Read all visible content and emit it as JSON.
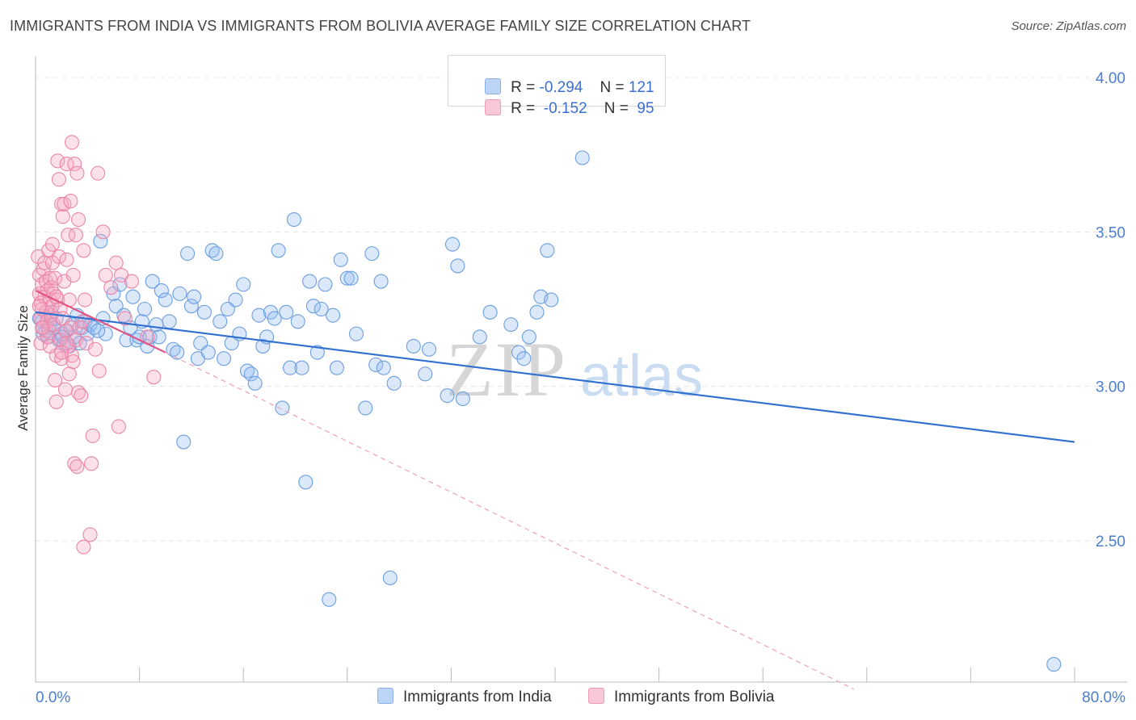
{
  "header": {
    "title": "IMMIGRANTS FROM INDIA VS IMMIGRANTS FROM BOLIVIA AVERAGE FAMILY SIZE CORRELATION CHART",
    "source": "Source: ZipAtlas.com"
  },
  "watermark": {
    "part1": "ZIP",
    "part2": "atlas"
  },
  "legend": {
    "rows": [
      {
        "r_label": "R = ",
        "r_value": "-0.294",
        "n_label": "N = ",
        "n_value": "121",
        "color": "#a9c8f0"
      },
      {
        "r_label": "R = ",
        "r_value": " -0.152",
        "n_label": "N = ",
        "n_value": " 95",
        "color": "#f5b8cc"
      }
    ]
  },
  "bottom_legend": {
    "india_label": "Immigrants from India",
    "bolivia_label": "Immigrants from Bolivia"
  },
  "colors": {
    "india_fill": "rgba(150,190,240,0.35)",
    "india_stroke": "#6c9fe0",
    "india_line": "#2f6fd0",
    "bolivia_fill": "rgba(245,170,195,0.35)",
    "bolivia_stroke": "#ea86a8",
    "bolivia_line": "#e05585",
    "grid": "#e4e4e4",
    "tick_text": "#4a7fcf"
  },
  "chart_data": {
    "type": "scatter",
    "title": "IMMIGRANTS FROM INDIA VS IMMIGRANTS FROM BOLIVIA AVERAGE FAMILY SIZE CORRELATION CHART",
    "xlabel": "",
    "ylabel": "Average Family Size",
    "xlim": [
      0,
      80
    ],
    "ylim": [
      2.0,
      4.1
    ],
    "x_tick_labels": [
      "0.0%",
      "80.0%"
    ],
    "y_ticks": [
      2.5,
      3.0,
      3.5,
      4.0
    ],
    "y_tick_labels": [
      "2.50",
      "3.00",
      "3.50",
      "4.00"
    ],
    "grid": true,
    "legend_position": "top-center",
    "series": [
      {
        "name": "Immigrants from India",
        "R": -0.294,
        "N": 121,
        "trend": {
          "x0": 0.0,
          "y0": 3.24,
          "x1": 80.0,
          "y1": 2.82
        },
        "points": [
          [
            0.5,
            3.21
          ],
          [
            0.8,
            3.18
          ],
          [
            1.0,
            3.16
          ],
          [
            1.2,
            3.24
          ],
          [
            1.4,
            3.19
          ],
          [
            1.6,
            3.22
          ],
          [
            1.8,
            3.15
          ],
          [
            2.0,
            3.17
          ],
          [
            2.2,
            3.14
          ],
          [
            2.4,
            3.18
          ],
          [
            2.6,
            3.13
          ],
          [
            2.8,
            3.2
          ],
          [
            3.0,
            3.16
          ],
          [
            3.2,
            3.23
          ],
          [
            3.4,
            3.14
          ],
          [
            3.6,
            3.19
          ],
          [
            3.8,
            3.21
          ],
          [
            4.0,
            3.17
          ],
          [
            4.2,
            3.2
          ],
          [
            4.5,
            3.19
          ],
          [
            5.0,
            3.47
          ],
          [
            5.2,
            3.22
          ],
          [
            5.4,
            3.17
          ],
          [
            6.0,
            3.3
          ],
          [
            6.2,
            3.26
          ],
          [
            6.5,
            3.33
          ],
          [
            6.8,
            3.23
          ],
          [
            7.0,
            3.15
          ],
          [
            7.3,
            3.19
          ],
          [
            7.5,
            3.29
          ],
          [
            7.8,
            3.15
          ],
          [
            8.0,
            3.16
          ],
          [
            8.2,
            3.21
          ],
          [
            8.4,
            3.25
          ],
          [
            8.6,
            3.13
          ],
          [
            8.8,
            3.16
          ],
          [
            9.0,
            3.34
          ],
          [
            9.3,
            3.2
          ],
          [
            9.5,
            3.16
          ],
          [
            9.7,
            3.31
          ],
          [
            10.0,
            3.28
          ],
          [
            10.3,
            3.21
          ],
          [
            10.6,
            3.12
          ],
          [
            10.9,
            3.11
          ],
          [
            11.1,
            3.3
          ],
          [
            11.4,
            2.82
          ],
          [
            11.7,
            3.43
          ],
          [
            12.0,
            3.26
          ],
          [
            12.2,
            3.29
          ],
          [
            12.5,
            3.09
          ],
          [
            12.7,
            3.14
          ],
          [
            13.0,
            3.24
          ],
          [
            13.3,
            3.11
          ],
          [
            13.6,
            3.44
          ],
          [
            13.9,
            3.43
          ],
          [
            14.2,
            3.21
          ],
          [
            14.5,
            3.09
          ],
          [
            14.8,
            3.25
          ],
          [
            15.1,
            3.14
          ],
          [
            15.4,
            3.28
          ],
          [
            15.7,
            3.17
          ],
          [
            16.0,
            3.33
          ],
          [
            16.3,
            3.05
          ],
          [
            16.6,
            3.04
          ],
          [
            16.9,
            3.01
          ],
          [
            17.2,
            3.23
          ],
          [
            17.5,
            3.13
          ],
          [
            17.8,
            3.16
          ],
          [
            18.1,
            3.24
          ],
          [
            18.4,
            3.22
          ],
          [
            18.7,
            3.44
          ],
          [
            19.0,
            2.93
          ],
          [
            19.3,
            3.24
          ],
          [
            19.6,
            3.06
          ],
          [
            19.9,
            3.54
          ],
          [
            20.2,
            3.21
          ],
          [
            20.5,
            3.06
          ],
          [
            20.8,
            2.69
          ],
          [
            21.1,
            3.34
          ],
          [
            21.4,
            3.26
          ],
          [
            21.7,
            3.11
          ],
          [
            22.0,
            3.25
          ],
          [
            22.3,
            3.33
          ],
          [
            22.6,
            2.31
          ],
          [
            22.9,
            3.23
          ],
          [
            23.2,
            3.06
          ],
          [
            23.5,
            3.41
          ],
          [
            24.0,
            3.35
          ],
          [
            24.3,
            3.35
          ],
          [
            24.7,
            3.17
          ],
          [
            25.4,
            2.93
          ],
          [
            25.9,
            3.43
          ],
          [
            26.2,
            3.07
          ],
          [
            26.6,
            3.34
          ],
          [
            26.8,
            3.06
          ],
          [
            27.3,
            2.38
          ],
          [
            27.6,
            3.01
          ],
          [
            29.1,
            3.13
          ],
          [
            30.0,
            3.04
          ],
          [
            30.3,
            3.12
          ],
          [
            31.7,
            2.97
          ],
          [
            32.1,
            3.46
          ],
          [
            32.5,
            3.39
          ],
          [
            32.9,
            2.96
          ],
          [
            34.2,
            3.16
          ],
          [
            35.0,
            3.24
          ],
          [
            36.6,
            3.2
          ],
          [
            37.2,
            3.11
          ],
          [
            37.6,
            3.09
          ],
          [
            38.0,
            3.16
          ],
          [
            38.6,
            3.24
          ],
          [
            38.9,
            3.29
          ],
          [
            39.4,
            3.44
          ],
          [
            39.7,
            3.28
          ],
          [
            42.1,
            3.74
          ],
          [
            78.4,
            2.1
          ],
          [
            0.3,
            3.22
          ],
          [
            0.6,
            3.17
          ],
          [
            1.1,
            3.2
          ],
          [
            2.1,
            3.16
          ],
          [
            4.8,
            3.18
          ]
        ]
      },
      {
        "name": "Immigrants from Bolivia",
        "R": -0.152,
        "N": 95,
        "trend": {
          "x0": 0.0,
          "y0": 3.31,
          "x1": 10.0,
          "y1": 3.11
        },
        "trend_extension": {
          "x0": 10.0,
          "y0": 3.11,
          "x1": 63.0,
          "y1": 2.02
        },
        "points": [
          [
            0.2,
            3.42
          ],
          [
            0.3,
            3.3
          ],
          [
            0.3,
            3.36
          ],
          [
            0.4,
            3.27
          ],
          [
            0.4,
            3.22
          ],
          [
            0.5,
            3.33
          ],
          [
            0.5,
            3.25
          ],
          [
            0.6,
            3.38
          ],
          [
            0.6,
            3.19
          ],
          [
            0.7,
            3.29
          ],
          [
            0.7,
            3.4
          ],
          [
            0.8,
            3.24
          ],
          [
            0.8,
            3.34
          ],
          [
            0.9,
            3.31
          ],
          [
            0.9,
            3.21
          ],
          [
            1.0,
            3.44
          ],
          [
            1.0,
            3.18
          ],
          [
            1.1,
            3.28
          ],
          [
            1.1,
            3.35
          ],
          [
            1.2,
            3.23
          ],
          [
            1.2,
            3.32
          ],
          [
            1.3,
            3.26
          ],
          [
            1.3,
            3.4
          ],
          [
            1.4,
            3.2
          ],
          [
            1.4,
            3.3
          ],
          [
            1.5,
            3.35
          ],
          [
            1.5,
            3.02
          ],
          [
            1.6,
            3.1
          ],
          [
            1.6,
            2.95
          ],
          [
            1.7,
            3.73
          ],
          [
            1.7,
            3.28
          ],
          [
            1.8,
            3.67
          ],
          [
            1.8,
            3.42
          ],
          [
            1.9,
            3.15
          ],
          [
            1.9,
            3.25
          ],
          [
            2.0,
            3.59
          ],
          [
            2.0,
            3.09
          ],
          [
            2.1,
            3.55
          ],
          [
            2.1,
            3.22
          ],
          [
            2.2,
            3.59
          ],
          [
            2.2,
            3.34
          ],
          [
            2.3,
            2.99
          ],
          [
            2.3,
            3.18
          ],
          [
            2.4,
            3.72
          ],
          [
            2.4,
            3.41
          ],
          [
            2.5,
            3.49
          ],
          [
            2.5,
            3.13
          ],
          [
            2.6,
            3.28
          ],
          [
            2.6,
            3.04
          ],
          [
            2.7,
            3.6
          ],
          [
            2.7,
            3.19
          ],
          [
            2.8,
            3.79
          ],
          [
            2.8,
            3.1
          ],
          [
            2.9,
            3.36
          ],
          [
            2.9,
            3.08
          ],
          [
            3.0,
            3.72
          ],
          [
            3.0,
            2.75
          ],
          [
            3.1,
            3.49
          ],
          [
            3.1,
            3.15
          ],
          [
            3.2,
            3.69
          ],
          [
            3.2,
            2.74
          ],
          [
            3.3,
            2.98
          ],
          [
            3.3,
            3.54
          ],
          [
            3.4,
            3.19
          ],
          [
            3.5,
            2.97
          ],
          [
            3.6,
            3.21
          ],
          [
            3.7,
            3.44
          ],
          [
            3.7,
            2.48
          ],
          [
            3.8,
            3.28
          ],
          [
            3.9,
            3.14
          ],
          [
            4.2,
            2.52
          ],
          [
            4.3,
            2.75
          ],
          [
            4.4,
            2.84
          ],
          [
            4.6,
            3.12
          ],
          [
            4.8,
            3.69
          ],
          [
            4.9,
            3.05
          ],
          [
            5.2,
            3.5
          ],
          [
            5.4,
            3.36
          ],
          [
            5.8,
            3.32
          ],
          [
            6.2,
            3.4
          ],
          [
            6.4,
            2.87
          ],
          [
            6.6,
            3.36
          ],
          [
            6.9,
            3.22
          ],
          [
            7.4,
            3.34
          ],
          [
            8.6,
            3.16
          ],
          [
            9.1,
            3.03
          ],
          [
            0.4,
            3.14
          ],
          [
            0.9,
            3.16
          ],
          [
            1.6,
            3.29
          ],
          [
            2.4,
            3.14
          ],
          [
            1.1,
            3.13
          ],
          [
            0.3,
            3.26
          ],
          [
            0.5,
            3.19
          ],
          [
            2.0,
            3.11
          ],
          [
            1.3,
            3.46
          ]
        ]
      }
    ]
  }
}
